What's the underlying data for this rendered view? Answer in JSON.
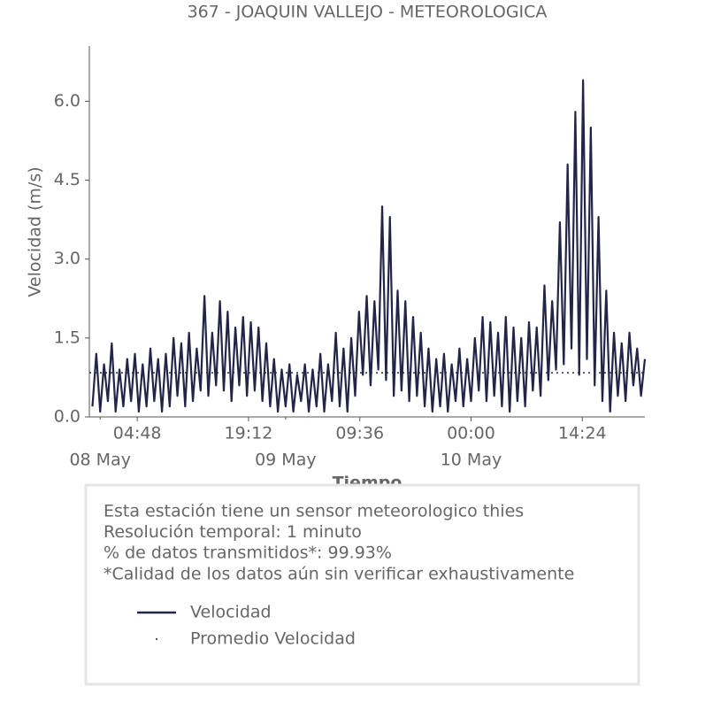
{
  "chart_data": {
    "type": "line",
    "title": "367 - JOAQUIN VALLEJO - METEOROLOGICA",
    "ylabel": "Velocidad (m/s)",
    "xlabel": "Tiempo",
    "xlim": [
      -1.4,
      70.5
    ],
    "ylim": [
      0,
      7.05
    ],
    "yticks": [
      {
        "value": 0,
        "label": "0.0"
      },
      {
        "value": 1.5,
        "label": "1.5"
      },
      {
        "value": 3,
        "label": "3.0"
      },
      {
        "value": 4.5,
        "label": "4.5"
      },
      {
        "value": 6,
        "label": "6.0"
      }
    ],
    "xticks": [
      {
        "value": 4.8,
        "label": "04:48"
      },
      {
        "value": 19.2,
        "label": "19:12"
      },
      {
        "value": 33.6,
        "label": "09:36"
      },
      {
        "value": 48,
        "label": "00:00"
      },
      {
        "value": 62.4,
        "label": "14:24"
      }
    ],
    "date_ticks": [
      {
        "value": 0,
        "label": "08 May"
      },
      {
        "value": 24,
        "label": "09 May"
      },
      {
        "value": 48,
        "label": "10 May"
      }
    ],
    "series": [
      {
        "name": "Velocidad",
        "color": "#222548",
        "x": [
          -1,
          -0.5,
          0,
          0.5,
          1,
          1.5,
          2,
          2.5,
          3,
          3.5,
          4,
          4.5,
          5,
          5.5,
          6,
          6.5,
          7,
          7.5,
          8,
          8.5,
          9,
          9.5,
          10,
          10.5,
          11,
          11.5,
          12,
          12.5,
          13,
          13.5,
          14,
          14.5,
          15,
          15.5,
          16,
          16.5,
          17,
          17.5,
          18,
          18.5,
          19,
          19.5,
          20,
          20.5,
          21,
          21.5,
          22,
          22.5,
          23,
          23.5,
          24,
          24.5,
          25,
          25.5,
          26,
          26.5,
          27,
          27.5,
          28,
          28.5,
          29,
          29.5,
          30,
          30.5,
          31,
          31.5,
          32,
          32.5,
          33,
          33.5,
          34,
          34.5,
          35,
          35.5,
          36,
          36.5,
          37,
          37.5,
          38,
          38.5,
          39,
          39.5,
          40,
          40.5,
          41,
          41.5,
          42,
          42.5,
          43,
          43.5,
          44,
          44.5,
          45,
          45.5,
          46,
          46.5,
          47,
          47.5,
          48,
          48.5,
          49,
          49.5,
          50,
          50.5,
          51,
          51.5,
          52,
          52.5,
          53,
          53.5,
          54,
          54.5,
          55,
          55.5,
          56,
          56.5,
          57,
          57.5,
          58,
          58.5,
          59,
          59.5,
          60,
          60.5,
          61,
          61.5,
          62,
          62.5,
          63,
          63.5,
          64,
          64.5,
          65,
          65.5,
          66,
          66.5,
          67,
          67.5,
          68,
          68.5,
          69,
          69.5,
          70,
          70.5
        ],
        "values": [
          0.2,
          1.2,
          0.1,
          1.0,
          0.3,
          1.4,
          0.1,
          0.9,
          0.2,
          1.1,
          0.3,
          1.2,
          0.1,
          1.0,
          0.2,
          1.3,
          0.3,
          1.1,
          0.1,
          1.2,
          0.2,
          1.5,
          0.4,
          1.4,
          0.2,
          1.6,
          0.3,
          1.3,
          0.5,
          2.3,
          0.4,
          1.6,
          0.6,
          2.2,
          0.5,
          2.0,
          0.3,
          1.7,
          0.6,
          1.9,
          0.4,
          1.8,
          0.5,
          1.7,
          0.3,
          1.4,
          0.2,
          1.1,
          0.1,
          0.9,
          0.2,
          1.0,
          0.1,
          0.8,
          0.3,
          1.0,
          0.1,
          0.9,
          0.2,
          1.2,
          0.1,
          1.0,
          0.3,
          1.6,
          0.2,
          1.3,
          0.1,
          1.5,
          0.4,
          2.0,
          0.8,
          2.3,
          0.6,
          2.2,
          0.9,
          4.0,
          0.7,
          3.8,
          0.4,
          2.4,
          0.5,
          2.2,
          0.3,
          1.9,
          0.4,
          1.6,
          0.2,
          1.3,
          0.1,
          1.1,
          0.2,
          1.2,
          0.1,
          1.0,
          0.3,
          1.3,
          0.2,
          1.1,
          0.3,
          1.5,
          0.5,
          1.9,
          0.3,
          1.8,
          0.4,
          1.6,
          0.2,
          1.9,
          0.1,
          1.7,
          0.3,
          1.5,
          0.2,
          1.8,
          0.5,
          1.7,
          0.4,
          2.5,
          0.7,
          2.2,
          0.9,
          3.7,
          1.0,
          4.8,
          1.3,
          5.8,
          0.8,
          6.4,
          1.1,
          5.5,
          0.6,
          3.8,
          0.3,
          2.4,
          0.1,
          1.6,
          0.4,
          1.4,
          0.3,
          1.6,
          0.6,
          1.3,
          0.4,
          1.1
        ]
      },
      {
        "name": "Promedio Velocidad",
        "color": "#222548",
        "x": [
          -1.4,
          70.5
        ],
        "values": [
          0.84,
          0.84
        ]
      }
    ],
    "info": [
      "Esta estación tiene un sensor meteorologico thies",
      "Resolución temporal: 1 minuto",
      "% de datos transmitidos*: 99.93%",
      "*Calidad de los datos aún sin verificar exhaustivamente"
    ]
  }
}
